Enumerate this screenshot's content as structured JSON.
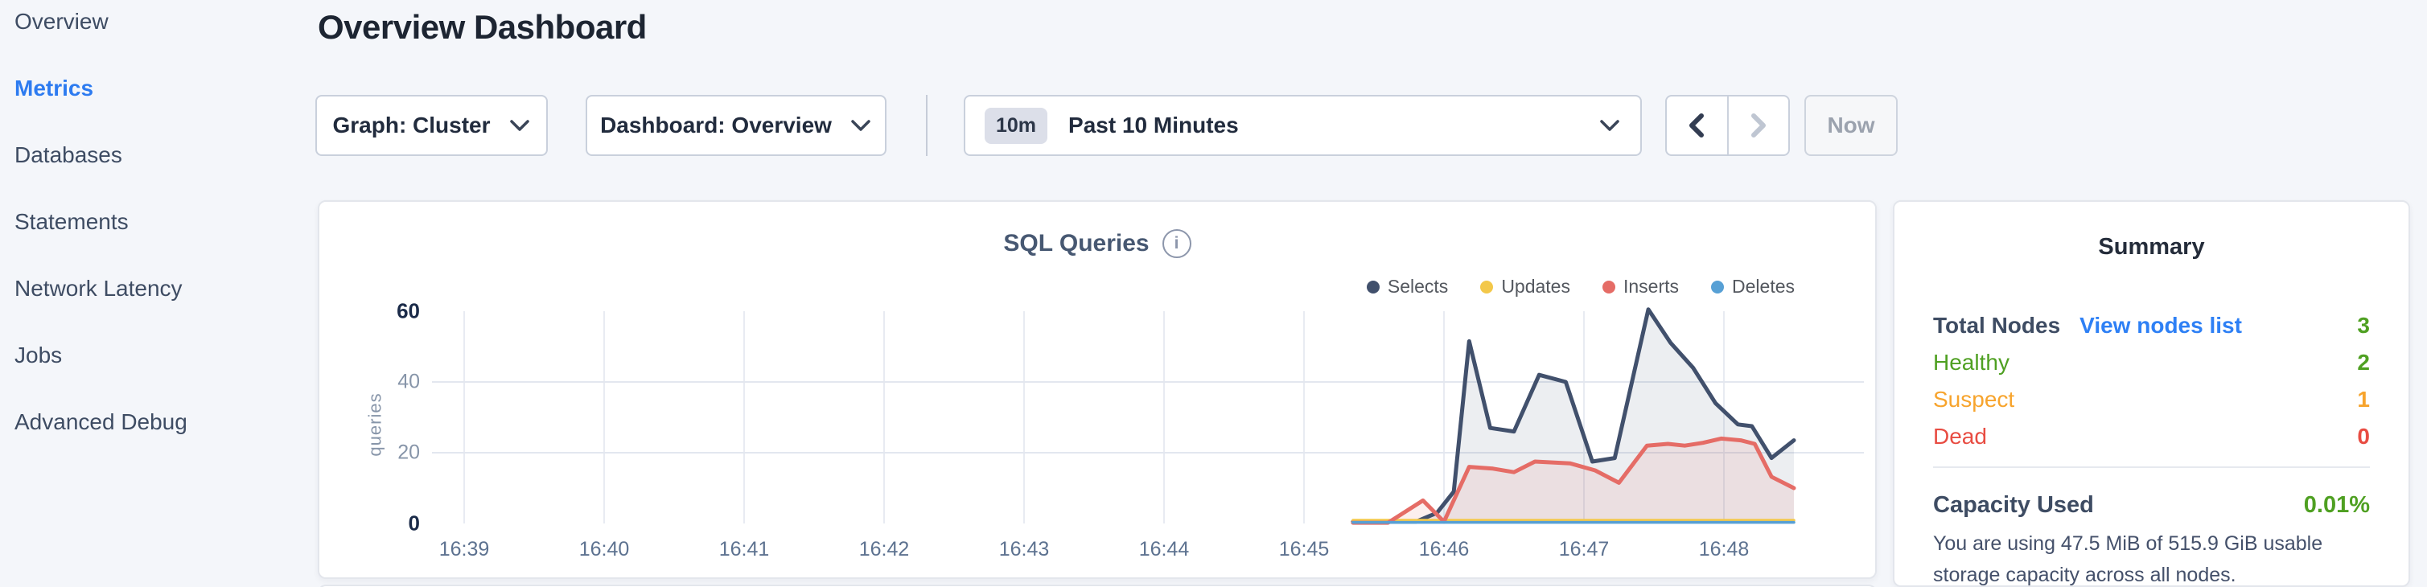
{
  "sidebar": {
    "items": [
      {
        "label": "Overview",
        "active": false
      },
      {
        "label": "Metrics",
        "active": true
      },
      {
        "label": "Databases",
        "active": false
      },
      {
        "label": "Statements",
        "active": false
      },
      {
        "label": "Network Latency",
        "active": false
      },
      {
        "label": "Jobs",
        "active": false
      },
      {
        "label": "Advanced Debug",
        "active": false
      }
    ]
  },
  "header": {
    "title": "Overview Dashboard"
  },
  "toolbar": {
    "graph_label": "Graph: Cluster",
    "dashboard_label": "Dashboard: Overview",
    "time_badge": "10m",
    "time_label": "Past 10 Minutes",
    "now_label": "Now"
  },
  "chart_data": {
    "type": "area",
    "title": "SQL Queries",
    "ylabel": "queries",
    "ylim": [
      0,
      60
    ],
    "y_ticks": [
      0,
      20,
      40,
      60
    ],
    "y_gridlines": [
      20,
      40
    ],
    "grid": true,
    "legend_position": "top-right",
    "x_window_minutes": {
      "start": 38.77,
      "end": 49.0
    },
    "x_ticks": [
      {
        "label": "16:39",
        "min": 39
      },
      {
        "label": "16:40",
        "min": 40
      },
      {
        "label": "16:41",
        "min": 41
      },
      {
        "label": "16:42",
        "min": 42
      },
      {
        "label": "16:43",
        "min": 43
      },
      {
        "label": "16:44",
        "min": 44
      },
      {
        "label": "16:45",
        "min": 45
      },
      {
        "label": "16:46",
        "min": 46
      },
      {
        "label": "16:47",
        "min": 47
      },
      {
        "label": "16:48",
        "min": 48
      }
    ],
    "series": [
      {
        "name": "Selects",
        "color": "#41506c",
        "fill": "rgba(71,88,114,0.10)",
        "width": 5,
        "points": [
          [
            45.35,
            0.5
          ],
          [
            45.8,
            0.5
          ],
          [
            45.95,
            3
          ],
          [
            46.07,
            9
          ],
          [
            46.18,
            51.5
          ],
          [
            46.33,
            27
          ],
          [
            46.5,
            26
          ],
          [
            46.68,
            42
          ],
          [
            46.87,
            40
          ],
          [
            47.06,
            17.5
          ],
          [
            47.22,
            18.5
          ],
          [
            47.46,
            60.5
          ],
          [
            47.62,
            51
          ],
          [
            47.78,
            44
          ],
          [
            47.94,
            34
          ],
          [
            48.1,
            28
          ],
          [
            48.2,
            27.5
          ],
          [
            48.34,
            18.5
          ],
          [
            48.5,
            23.5
          ]
        ]
      },
      {
        "name": "Updates",
        "color": "#f3c84a",
        "fill": null,
        "width": 3.5,
        "points": [
          [
            45.35,
            0.9
          ],
          [
            48.5,
            0.9
          ]
        ]
      },
      {
        "name": "Inserts",
        "color": "#e56c66",
        "fill": "rgba(229,108,102,0.11)",
        "width": 5,
        "points": [
          [
            45.35,
            0.2
          ],
          [
            45.6,
            0.2
          ],
          [
            45.85,
            6.5
          ],
          [
            46.0,
            0.5
          ],
          [
            46.18,
            16
          ],
          [
            46.35,
            15.5
          ],
          [
            46.5,
            14.5
          ],
          [
            46.65,
            17.5
          ],
          [
            46.9,
            17
          ],
          [
            47.08,
            15
          ],
          [
            47.25,
            11.5
          ],
          [
            47.45,
            22
          ],
          [
            47.6,
            22.5
          ],
          [
            47.72,
            22
          ],
          [
            47.85,
            22.8
          ],
          [
            47.98,
            24
          ],
          [
            48.12,
            23.5
          ],
          [
            48.22,
            22.5
          ],
          [
            48.34,
            13.2
          ],
          [
            48.5,
            10
          ]
        ]
      },
      {
        "name": "Deletes",
        "color": "#57a0d5",
        "fill": null,
        "width": 3.5,
        "points": [
          [
            45.35,
            0.3
          ],
          [
            48.5,
            0.3
          ]
        ]
      }
    ]
  },
  "summary": {
    "title": "Summary",
    "rows": [
      {
        "label": "Total Nodes",
        "link": "View nodes list",
        "value": "3",
        "label_color": "#3e4c63",
        "value_color": "#4fa022",
        "bold": true
      },
      {
        "label": "Healthy",
        "link": null,
        "value": "2",
        "label_color": "#4fa022",
        "value_color": "#4fa022",
        "bold": false
      },
      {
        "label": "Suspect",
        "link": null,
        "value": "1",
        "label_color": "#f7a42d",
        "value_color": "#f7a42d",
        "bold": false
      },
      {
        "label": "Dead",
        "link": null,
        "value": "0",
        "label_color": "#e84c42",
        "value_color": "#e84c42",
        "bold": false
      }
    ],
    "capacity": {
      "label": "Capacity Used",
      "value": "0.01%",
      "value_color": "#4fa022",
      "description": "You are using 47.5 MiB of 515.9 GiB usable storage capacity across all nodes."
    }
  },
  "colors": {
    "page_background": "#f4f6fa",
    "accent_blue": "#2d7bf0",
    "link_blue": "#2e80f5",
    "healthy_green": "#4fa022",
    "suspect_orange": "#f7a42d",
    "dead_red": "#e84c42"
  }
}
